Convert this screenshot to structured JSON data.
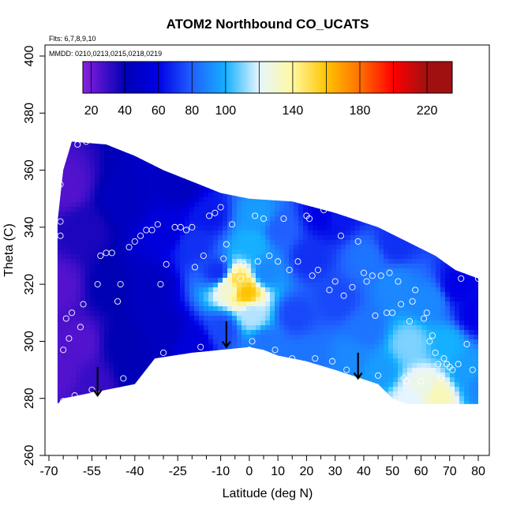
{
  "chart_data": {
    "type": "heatmap",
    "title": "ATOM2 Northbound CO_UCATS",
    "annotations": [
      "Flts: 6,7,8,9,10",
      "MMDD: 0210,0213,0215,0218,0219"
    ],
    "xlabel": "Latitude (deg N)",
    "ylabel": "Theta (C)",
    "xlim": [
      -70,
      80
    ],
    "ylim": [
      260,
      400
    ],
    "x_ticks": [
      -70,
      -55,
      -40,
      -25,
      -10,
      0,
      10,
      20,
      30,
      40,
      50,
      60,
      70,
      80
    ],
    "x_tick_labels": [
      "-70",
      "-55",
      "-40",
      "-25",
      "-10",
      "0",
      "10",
      "20",
      "30",
      "40",
      "50",
      "60",
      "70",
      "80"
    ],
    "x_minor_ticks": [
      -65,
      -60,
      -50,
      -45,
      -35,
      -30,
      -20,
      -15,
      -5,
      5,
      15,
      25,
      35,
      45,
      55,
      65,
      75
    ],
    "y_ticks": [
      260,
      280,
      300,
      320,
      340,
      360,
      380,
      400
    ],
    "y_tick_labels": [
      "260",
      "280",
      "300",
      "320",
      "340",
      "360",
      "380",
      "400"
    ],
    "colorbar": {
      "range": [
        15,
        235
      ],
      "ticks": [
        20,
        40,
        60,
        80,
        100,
        140,
        180,
        220
      ],
      "tick_labels": [
        "20",
        "40",
        "60",
        "80",
        "100",
        "140",
        "180",
        "220"
      ],
      "boundaries": [
        20,
        40,
        60,
        80,
        100,
        120,
        140,
        160,
        180,
        200,
        220
      ],
      "colors": [
        "#8a1fe0",
        "#0000b4",
        "#0000e6",
        "#2060ff",
        "#15b0ff",
        "#e6f5ff",
        "#fff8a0",
        "#ffc400",
        "#ff7000",
        "#ff0000",
        "#a01010"
      ],
      "color_stops": [
        15,
        40,
        60,
        80,
        100,
        120,
        140,
        160,
        180,
        200,
        220,
        235
      ]
    },
    "field_boundary": [
      [
        -67,
        278
      ],
      [
        -67,
        342
      ],
      [
        -65,
        360
      ],
      [
        -62,
        370
      ],
      [
        -50,
        369
      ],
      [
        -40,
        365
      ],
      [
        -30,
        360
      ],
      [
        -20,
        356
      ],
      [
        -10,
        352
      ],
      [
        0,
        350
      ],
      [
        15,
        349
      ],
      [
        30,
        345
      ],
      [
        45,
        340
      ],
      [
        55,
        335
      ],
      [
        65,
        330
      ],
      [
        72,
        325
      ],
      [
        80,
        322
      ],
      [
        80,
        278
      ],
      [
        65,
        278
      ],
      [
        55,
        278
      ],
      [
        50,
        280
      ],
      [
        45,
        285
      ],
      [
        30,
        290
      ],
      [
        20,
        293
      ],
      [
        10,
        295
      ],
      [
        5,
        297
      ],
      [
        0,
        298
      ],
      [
        -10,
        297
      ],
      [
        -20,
        296
      ],
      [
        -33,
        294
      ],
      [
        -40,
        285
      ],
      [
        -50,
        283
      ],
      [
        -55,
        282
      ],
      [
        -60,
        281
      ],
      [
        -65,
        280
      ]
    ],
    "field_samples": [
      {
        "x": -67,
        "y": 290,
        "v": 25
      },
      {
        "x": -67,
        "y": 320,
        "v": 25
      },
      {
        "x": -65,
        "y": 355,
        "v": 25
      },
      {
        "x": -60,
        "y": 300,
        "v": 25
      },
      {
        "x": -58,
        "y": 340,
        "v": 35
      },
      {
        "x": -55,
        "y": 285,
        "v": 30
      },
      {
        "x": -50,
        "y": 320,
        "v": 40
      },
      {
        "x": -45,
        "y": 350,
        "v": 45
      },
      {
        "x": -45,
        "y": 300,
        "v": 40
      },
      {
        "x": -40,
        "y": 290,
        "v": 42
      },
      {
        "x": -35,
        "y": 320,
        "v": 45
      },
      {
        "x": -30,
        "y": 340,
        "v": 55
      },
      {
        "x": -30,
        "y": 305,
        "v": 45
      },
      {
        "x": -25,
        "y": 355,
        "v": 45
      },
      {
        "x": -20,
        "y": 300,
        "v": 55
      },
      {
        "x": -20,
        "y": 335,
        "v": 70
      },
      {
        "x": -15,
        "y": 345,
        "v": 65
      },
      {
        "x": -12,
        "y": 325,
        "v": 70
      },
      {
        "x": -10,
        "y": 305,
        "v": 75
      },
      {
        "x": -5,
        "y": 322,
        "v": 150
      },
      {
        "x": -2,
        "y": 318,
        "v": 160
      },
      {
        "x": -8,
        "y": 320,
        "v": 130
      },
      {
        "x": 0,
        "y": 310,
        "v": 115
      },
      {
        "x": 0,
        "y": 335,
        "v": 100
      },
      {
        "x": 2,
        "y": 345,
        "v": 95
      },
      {
        "x": 5,
        "y": 325,
        "v": 90
      },
      {
        "x": 5,
        "y": 300,
        "v": 85
      },
      {
        "x": 10,
        "y": 340,
        "v": 80
      },
      {
        "x": 15,
        "y": 310,
        "v": 75
      },
      {
        "x": 20,
        "y": 330,
        "v": 70
      },
      {
        "x": 20,
        "y": 295,
        "v": 85
      },
      {
        "x": 30,
        "y": 345,
        "v": 65
      },
      {
        "x": 30,
        "y": 315,
        "v": 75
      },
      {
        "x": 35,
        "y": 295,
        "v": 90
      },
      {
        "x": 40,
        "y": 330,
        "v": 85
      },
      {
        "x": 40,
        "y": 305,
        "v": 85
      },
      {
        "x": 45,
        "y": 290,
        "v": 95
      },
      {
        "x": 50,
        "y": 320,
        "v": 90
      },
      {
        "x": 50,
        "y": 335,
        "v": 70
      },
      {
        "x": 55,
        "y": 300,
        "v": 110
      },
      {
        "x": 60,
        "y": 285,
        "v": 125
      },
      {
        "x": 62,
        "y": 315,
        "v": 90
      },
      {
        "x": 65,
        "y": 282,
        "v": 135
      },
      {
        "x": 68,
        "y": 300,
        "v": 100
      },
      {
        "x": 72,
        "y": 320,
        "v": 60
      },
      {
        "x": 75,
        "y": 290,
        "v": 95
      },
      {
        "x": 78,
        "y": 310,
        "v": 60
      },
      {
        "x": 80,
        "y": 285,
        "v": 90
      },
      {
        "x": 55,
        "y": 280,
        "v": 120
      },
      {
        "x": 25,
        "y": 345,
        "v": 60
      }
    ],
    "observations": [
      [
        -66,
        342
      ],
      [
        -66,
        337
      ],
      [
        -65,
        297
      ],
      [
        -64,
        308
      ],
      [
        -63,
        301
      ],
      [
        -62,
        310
      ],
      [
        -61,
        281
      ],
      [
        -60,
        369
      ],
      [
        -59,
        305
      ],
      [
        -58,
        313
      ],
      [
        -57,
        370
      ],
      [
        -55,
        283
      ],
      [
        -53,
        320
      ],
      [
        -52,
        330
      ],
      [
        -50,
        331
      ],
      [
        -48,
        331
      ],
      [
        -46,
        314
      ],
      [
        -45,
        320
      ],
      [
        -44,
        287
      ],
      [
        -42,
        333
      ],
      [
        -40,
        335
      ],
      [
        -38,
        337
      ],
      [
        -36,
        339
      ],
      [
        -34,
        339
      ],
      [
        -32,
        341
      ],
      [
        -31,
        320
      ],
      [
        -30,
        296
      ],
      [
        -29,
        327
      ],
      [
        -26,
        340
      ],
      [
        -24,
        340
      ],
      [
        -22,
        339
      ],
      [
        -20,
        340
      ],
      [
        -19,
        326
      ],
      [
        -17,
        298
      ],
      [
        -16,
        330
      ],
      [
        -14,
        344
      ],
      [
        -12,
        345
      ],
      [
        -10,
        347
      ],
      [
        -9,
        329
      ],
      [
        -8,
        334
      ],
      [
        -6,
        341
      ],
      [
        -5,
        325
      ],
      [
        -3,
        322
      ],
      [
        -2,
        327
      ],
      [
        0,
        297
      ],
      [
        1,
        300
      ],
      [
        2,
        344
      ],
      [
        3,
        328
      ],
      [
        5,
        343
      ],
      [
        7,
        330
      ],
      [
        9,
        297
      ],
      [
        10,
        328
      ],
      [
        12,
        343
      ],
      [
        14,
        325
      ],
      [
        15,
        294
      ],
      [
        17,
        328
      ],
      [
        20,
        344
      ],
      [
        21,
        343
      ],
      [
        22,
        323
      ],
      [
        23,
        294
      ],
      [
        24,
        325
      ],
      [
        26,
        346
      ],
      [
        28,
        318
      ],
      [
        29,
        293
      ],
      [
        30,
        321
      ],
      [
        32,
        337
      ],
      [
        33,
        316
      ],
      [
        34,
        290
      ],
      [
        36,
        319
      ],
      [
        38,
        335
      ],
      [
        40,
        324
      ],
      [
        41,
        321
      ],
      [
        43,
        323
      ],
      [
        44,
        309
      ],
      [
        45,
        288
      ],
      [
        46,
        323
      ],
      [
        48,
        310
      ],
      [
        49,
        324
      ],
      [
        50,
        310
      ],
      [
        52,
        321
      ],
      [
        53,
        313
      ],
      [
        54,
        287
      ],
      [
        55,
        286
      ],
      [
        56,
        307
      ],
      [
        57,
        314
      ],
      [
        58,
        318
      ],
      [
        60,
        286
      ],
      [
        61,
        308
      ],
      [
        62,
        310
      ],
      [
        63,
        300
      ],
      [
        64,
        302
      ],
      [
        65,
        296
      ],
      [
        66,
        292
      ],
      [
        67,
        287
      ],
      [
        68,
        294
      ],
      [
        69,
        292
      ],
      [
        70,
        291
      ],
      [
        71,
        290
      ],
      [
        73,
        292
      ],
      [
        74,
        322
      ],
      [
        76,
        299
      ],
      [
        78,
        290
      ],
      [
        80,
        322
      ],
      [
        -68,
        278
      ],
      [
        -65,
        279
      ],
      [
        -67,
        359
      ],
      [
        -66,
        355
      ]
    ],
    "arrows": [
      {
        "x": -53,
        "y_from": 291,
        "y_to": 281
      },
      {
        "x": -8,
        "y_from": 307,
        "y_to": 298
      },
      {
        "x": 38,
        "y_from": 296,
        "y_to": 287
      }
    ]
  }
}
